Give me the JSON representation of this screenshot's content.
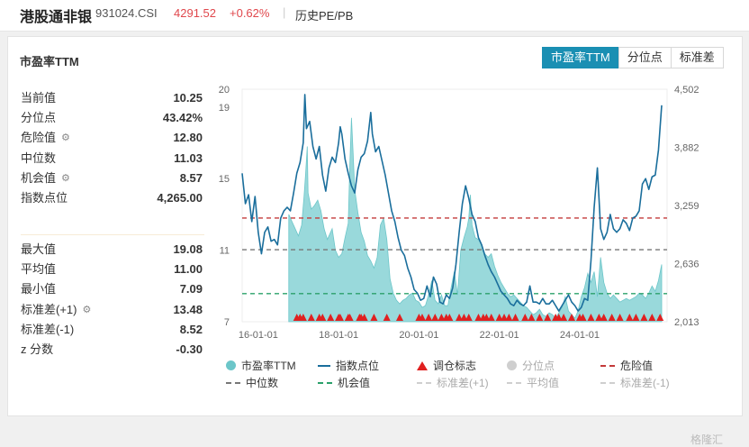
{
  "header": {
    "title": "港股通非银",
    "code": "931024.CSI",
    "price": "4291.52",
    "change": "+0.62%",
    "separator": "|",
    "history_label": "历史PE/PB"
  },
  "card": {
    "title": "市盈率TTM",
    "tabs": [
      {
        "label": "市盈率TTM",
        "active": true
      },
      {
        "label": "分位点",
        "active": false
      },
      {
        "label": "标准差",
        "active": false
      }
    ]
  },
  "stats_top": [
    {
      "label": "当前值",
      "value": "10.25",
      "gear": false
    },
    {
      "label": "分位点",
      "value": "43.42%",
      "gear": false
    },
    {
      "label": "危险值",
      "value": "12.80",
      "gear": true
    },
    {
      "label": "中位数",
      "value": "11.03",
      "gear": false
    },
    {
      "label": "机会值",
      "value": "8.57",
      "gear": true
    },
    {
      "label": "指数点位",
      "value": "4,265.00",
      "gear": false
    }
  ],
  "stats_bottom": [
    {
      "label": "最大值",
      "value": "19.08",
      "gear": false
    },
    {
      "label": "平均值",
      "value": "11.00",
      "gear": false
    },
    {
      "label": "最小值",
      "value": "7.09",
      "gear": false
    },
    {
      "label": "标准差(+1)",
      "value": "13.48",
      "gear": true
    },
    {
      "label": "标准差(-1)",
      "value": "8.52",
      "gear": false
    },
    {
      "label": "z 分数",
      "value": "-0.30",
      "gear": false
    }
  ],
  "chart_data": {
    "type": "line",
    "x_ticks": [
      "16-01-01",
      "18-01-01",
      "20-01-01",
      "22-01-01",
      "24-01-01"
    ],
    "y_left_ticks": [
      "7",
      "11",
      "15",
      "19",
      "20"
    ],
    "y_right_ticks": [
      "2,013",
      "2,636",
      "3,259",
      "3,882",
      "4,502"
    ],
    "ylim_left": [
      7,
      20
    ],
    "ylim_right": [
      2013,
      4502
    ],
    "danger": 12.8,
    "median": 11.03,
    "opportunity": 8.57,
    "pe_series": {
      "name": "市盈率TTM",
      "start_x": 0.29,
      "points": [
        [
          0.29,
          13
        ],
        [
          0.31,
          12.6
        ],
        [
          0.33,
          12.2
        ],
        [
          0.35,
          11.8
        ],
        [
          0.37,
          12.4
        ],
        [
          0.385,
          14
        ],
        [
          0.395,
          15.3
        ],
        [
          0.405,
          16.8
        ],
        [
          0.41,
          14.2
        ],
        [
          0.43,
          13.3
        ],
        [
          0.45,
          13.5
        ],
        [
          0.47,
          13.8
        ],
        [
          0.49,
          13.2
        ],
        [
          0.51,
          12.2
        ],
        [
          0.53,
          11.6
        ],
        [
          0.56,
          12.2
        ],
        [
          0.58,
          11.0
        ],
        [
          0.6,
          10.6
        ],
        [
          0.62,
          10.8
        ],
        [
          0.64,
          11.7
        ],
        [
          0.66,
          12.5
        ],
        [
          0.67,
          15.8
        ],
        [
          0.68,
          18.4
        ],
        [
          0.69,
          16.5
        ],
        [
          0.7,
          14.4
        ],
        [
          0.72,
          13.1
        ],
        [
          0.74,
          12.0
        ],
        [
          0.76,
          11.5
        ],
        [
          0.78,
          10.7
        ],
        [
          0.8,
          10.4
        ],
        [
          0.82,
          10.0
        ],
        [
          0.84,
          10.6
        ],
        [
          0.86,
          12.4
        ],
        [
          0.88,
          12.8
        ],
        [
          0.9,
          11.6
        ],
        [
          0.92,
          9.4
        ],
        [
          0.94,
          8.6
        ],
        [
          0.96,
          8.2
        ],
        [
          0.98,
          8.0
        ],
        [
          1.0,
          8.2
        ],
        [
          1.02,
          8.3
        ],
        [
          1.04,
          8.5
        ],
        [
          1.06,
          8.6
        ],
        [
          1.08,
          8.2
        ],
        [
          1.1,
          8.1
        ],
        [
          1.12,
          7.8
        ],
        [
          1.14,
          7.9
        ],
        [
          1.16,
          8.5
        ],
        [
          1.18,
          9.3
        ],
        [
          1.2,
          8.2
        ],
        [
          1.22,
          8.0
        ],
        [
          1.24,
          8.5
        ],
        [
          1.26,
          7.9
        ],
        [
          1.28,
          7.9
        ],
        [
          1.3,
          8.9
        ],
        [
          1.32,
          9.8
        ],
        [
          1.34,
          8.5
        ],
        [
          1.36,
          11.0
        ],
        [
          1.38,
          11.7
        ],
        [
          1.4,
          12.3
        ],
        [
          1.41,
          12.8
        ],
        [
          1.42,
          14.1
        ],
        [
          1.43,
          12.4
        ],
        [
          1.45,
          11.7
        ],
        [
          1.47,
          11.6
        ],
        [
          1.49,
          11.3
        ],
        [
          1.51,
          10.8
        ],
        [
          1.53,
          10.6
        ],
        [
          1.55,
          10.8
        ],
        [
          1.57,
          10.1
        ],
        [
          1.59,
          9.6
        ],
        [
          1.61,
          9.2
        ],
        [
          1.63,
          8.9
        ],
        [
          1.65,
          8.6
        ],
        [
          1.67,
          8.4
        ],
        [
          1.69,
          8.5
        ],
        [
          1.71,
          8.3
        ],
        [
          1.73,
          8.1
        ],
        [
          1.75,
          7.9
        ],
        [
          1.77,
          7.8
        ],
        [
          1.79,
          7.6
        ],
        [
          1.81,
          7.4
        ],
        [
          1.83,
          7.5
        ],
        [
          1.85,
          7.7
        ],
        [
          1.87,
          7.4
        ],
        [
          1.89,
          7.3
        ],
        [
          1.91,
          7.5
        ],
        [
          1.93,
          7.4
        ],
        [
          1.95,
          7.2
        ],
        [
          1.97,
          7.5
        ],
        [
          1.99,
          7.8
        ],
        [
          2.01,
          8.4
        ],
        [
          2.03,
          7.6
        ],
        [
          2.05,
          7.4
        ],
        [
          2.07,
          7.2
        ],
        [
          2.09,
          7.6
        ],
        [
          2.11,
          8.4
        ],
        [
          2.13,
          8.9
        ],
        [
          2.15,
          9.7
        ],
        [
          2.17,
          9.2
        ],
        [
          2.19,
          9.8
        ],
        [
          2.21,
          8.4
        ],
        [
          2.23,
          10.6
        ],
        [
          2.25,
          9.2
        ],
        [
          2.27,
          8.6
        ],
        [
          2.29,
          8.3
        ],
        [
          2.31,
          8.5
        ],
        [
          2.33,
          8.3
        ],
        [
          2.35,
          8.1
        ],
        [
          2.37,
          8.2
        ],
        [
          2.39,
          8.3
        ],
        [
          2.41,
          8.2
        ],
        [
          2.43,
          8.3
        ],
        [
          2.45,
          8.4
        ],
        [
          2.47,
          8.6
        ],
        [
          2.49,
          8.5
        ],
        [
          2.51,
          8.3
        ],
        [
          2.53,
          8.6
        ],
        [
          2.55,
          9.0
        ],
        [
          2.57,
          8.7
        ],
        [
          2.59,
          9.3
        ],
        [
          2.61,
          10.2
        ]
      ]
    },
    "index_series": {
      "name": "指数点位",
      "points": [
        [
          0.0,
          15.3
        ],
        [
          0.02,
          13.6
        ],
        [
          0.04,
          14.1
        ],
        [
          0.06,
          12.6
        ],
        [
          0.08,
          14.0
        ],
        [
          0.1,
          12.0
        ],
        [
          0.12,
          10.8
        ],
        [
          0.14,
          12.0
        ],
        [
          0.16,
          12.3
        ],
        [
          0.18,
          11.5
        ],
        [
          0.2,
          11.6
        ],
        [
          0.22,
          11.3
        ],
        [
          0.24,
          12.8
        ],
        [
          0.26,
          13.2
        ],
        [
          0.28,
          13.4
        ],
        [
          0.3,
          13.2
        ],
        [
          0.32,
          14.2
        ],
        [
          0.34,
          15.3
        ],
        [
          0.36,
          15.9
        ],
        [
          0.38,
          17.0
        ],
        [
          0.39,
          19.7
        ],
        [
          0.4,
          17.8
        ],
        [
          0.42,
          18.2
        ],
        [
          0.44,
          16.8
        ],
        [
          0.46,
          16.1
        ],
        [
          0.48,
          16.8
        ],
        [
          0.5,
          15.2
        ],
        [
          0.52,
          14.3
        ],
        [
          0.54,
          15.6
        ],
        [
          0.56,
          16.2
        ],
        [
          0.58,
          15.9
        ],
        [
          0.6,
          17.0
        ],
        [
          0.61,
          17.9
        ],
        [
          0.62,
          17.5
        ],
        [
          0.64,
          16.1
        ],
        [
          0.66,
          15.3
        ],
        [
          0.68,
          14.6
        ],
        [
          0.7,
          14.2
        ],
        [
          0.72,
          15.5
        ],
        [
          0.74,
          16.2
        ],
        [
          0.76,
          16.4
        ],
        [
          0.78,
          17.1
        ],
        [
          0.8,
          18.7
        ],
        [
          0.81,
          17.5
        ],
        [
          0.83,
          16.5
        ],
        [
          0.85,
          16.8
        ],
        [
          0.87,
          16.0
        ],
        [
          0.89,
          15.2
        ],
        [
          0.91,
          14.2
        ],
        [
          0.93,
          13.2
        ],
        [
          0.95,
          12.6
        ],
        [
          0.97,
          11.7
        ],
        [
          0.99,
          11.0
        ],
        [
          1.01,
          10.7
        ],
        [
          1.03,
          10.0
        ],
        [
          1.05,
          9.5
        ],
        [
          1.07,
          8.8
        ],
        [
          1.09,
          8.6
        ],
        [
          1.11,
          8.2
        ],
        [
          1.13,
          8.3
        ],
        [
          1.15,
          9.0
        ],
        [
          1.17,
          8.4
        ],
        [
          1.19,
          9.5
        ],
        [
          1.21,
          9.1
        ],
        [
          1.23,
          8.1
        ],
        [
          1.25,
          8.0
        ],
        [
          1.27,
          8.5
        ],
        [
          1.29,
          8.3
        ],
        [
          1.31,
          8.9
        ],
        [
          1.33,
          10.2
        ],
        [
          1.35,
          12.0
        ],
        [
          1.37,
          13.6
        ],
        [
          1.39,
          14.6
        ],
        [
          1.41,
          13.9
        ],
        [
          1.43,
          13.0
        ],
        [
          1.45,
          12.6
        ],
        [
          1.47,
          11.7
        ],
        [
          1.49,
          11.3
        ],
        [
          1.51,
          10.7
        ],
        [
          1.53,
          10.2
        ],
        [
          1.55,
          9.8
        ],
        [
          1.57,
          9.5
        ],
        [
          1.59,
          9.1
        ],
        [
          1.61,
          8.7
        ],
        [
          1.63,
          8.5
        ],
        [
          1.65,
          8.3
        ],
        [
          1.67,
          8.0
        ],
        [
          1.69,
          7.9
        ],
        [
          1.71,
          8.2
        ],
        [
          1.73,
          8.0
        ],
        [
          1.75,
          7.9
        ],
        [
          1.77,
          8.1
        ],
        [
          1.79,
          9.0
        ],
        [
          1.81,
          8.1
        ],
        [
          1.83,
          8.1
        ],
        [
          1.85,
          8.0
        ],
        [
          1.87,
          8.3
        ],
        [
          1.89,
          8.0
        ],
        [
          1.91,
          8.0
        ],
        [
          1.93,
          8.2
        ],
        [
          1.95,
          7.9
        ],
        [
          1.97,
          7.6
        ],
        [
          1.99,
          7.9
        ],
        [
          2.01,
          8.2
        ],
        [
          2.03,
          8.5
        ],
        [
          2.05,
          8.1
        ],
        [
          2.07,
          7.9
        ],
        [
          2.09,
          7.6
        ],
        [
          2.11,
          7.8
        ],
        [
          2.13,
          8.3
        ],
        [
          2.15,
          8.2
        ],
        [
          2.17,
          10.4
        ],
        [
          2.19,
          13.4
        ],
        [
          2.21,
          15.6
        ],
        [
          2.23,
          12.2
        ],
        [
          2.25,
          11.6
        ],
        [
          2.27,
          12.0
        ],
        [
          2.29,
          13.0
        ],
        [
          2.31,
          12.2
        ],
        [
          2.33,
          12.0
        ],
        [
          2.35,
          12.2
        ],
        [
          2.37,
          12.7
        ],
        [
          2.39,
          12.5
        ],
        [
          2.41,
          12.1
        ],
        [
          2.43,
          12.8
        ],
        [
          2.45,
          12.9
        ],
        [
          2.47,
          13.2
        ],
        [
          2.49,
          14.7
        ],
        [
          2.51,
          15.0
        ],
        [
          2.53,
          14.4
        ],
        [
          2.55,
          15.1
        ],
        [
          2.57,
          15.2
        ],
        [
          2.59,
          16.6
        ],
        [
          2.61,
          19.1
        ]
      ]
    },
    "markers_x": [
      0.34,
      0.36,
      0.38,
      0.43,
      0.48,
      0.5,
      0.55,
      0.6,
      0.61,
      0.66,
      0.67,
      0.73,
      0.74,
      0.76,
      0.82,
      0.9,
      0.98,
      1.1,
      1.12,
      1.16,
      1.2,
      1.24,
      1.27,
      1.29,
      1.35,
      1.38,
      1.41,
      1.47,
      1.5,
      1.52,
      1.55,
      1.6,
      1.63,
      1.66,
      1.7,
      1.76,
      1.8,
      1.85,
      1.9,
      1.95,
      1.97,
      2.0,
      2.05,
      2.1,
      2.12,
      2.17,
      2.22,
      2.25,
      2.3,
      2.35,
      2.41,
      2.45,
      2.5,
      2.55,
      2.6
    ],
    "legend_row1": [
      {
        "label": "市盈率TTM",
        "kind": "dot",
        "color": "#6cc6c9"
      },
      {
        "label": "指数点位",
        "kind": "line",
        "color": "#1a6e9c"
      },
      {
        "label": "调仓标志",
        "kind": "tri",
        "color": "#e02020"
      },
      {
        "label": "分位点",
        "kind": "dot",
        "color": "#cfcfcf"
      },
      {
        "label": "危险值",
        "kind": "dash",
        "color": "#c43a3a"
      }
    ],
    "legend_row2": [
      {
        "label": "中位数",
        "kind": "dash",
        "color": "#777777"
      },
      {
        "label": "机会值",
        "kind": "dash",
        "color": "#2aa06a"
      },
      {
        "label": "标准差(+1)",
        "kind": "dash",
        "color": "#cfcfcf"
      },
      {
        "label": "平均值",
        "kind": "dash",
        "color": "#cfcfcf"
      },
      {
        "label": "标准差(-1)",
        "kind": "dash",
        "color": "#cfcfcf"
      }
    ]
  },
  "watermark": "格隆汇"
}
